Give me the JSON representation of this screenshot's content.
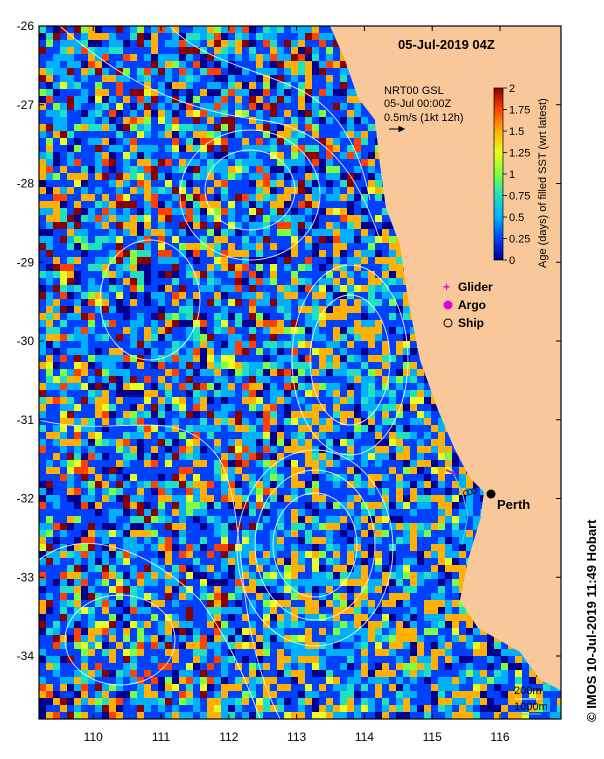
{
  "map": {
    "title": "05-Jul-2019 04Z",
    "product_line1": "NRT00 GSL",
    "product_line2": "05-Jul 00:00Z",
    "vector_scale_label": "0.5m/s (1kt 12h)",
    "city_label": "Perth",
    "credit": "© IMOS 10-Jul-2019 11:49 Hobart",
    "colors": {
      "land": "#f9c89a",
      "contour": "#ffffff",
      "frame": "#000000",
      "isobath": "#4fd0e0"
    },
    "lon_ticks": [
      "110",
      "111",
      "112",
      "113",
      "114",
      "115",
      "116"
    ],
    "lat_ticks": [
      "-26",
      "-27",
      "-28",
      "-29",
      "-30",
      "-31",
      "-32",
      "-33",
      "-34"
    ],
    "lon_range": [
      109.2,
      116.9
    ],
    "lat_range": [
      -26.0,
      -34.8
    ],
    "perth_location": {
      "lon": 115.86,
      "lat": -31.95
    }
  },
  "colorbar": {
    "title": "Age (days) of filled SST (wrt latest)",
    "range": [
      0,
      2
    ],
    "tick_labels": [
      "0",
      "0.25",
      "0.5",
      "0.75",
      "1",
      "1.25",
      "1.5",
      "1.75",
      "2"
    ],
    "stops": [
      "#00008f",
      "#0040ff",
      "#00b0ff",
      "#20e0c0",
      "#80ff40",
      "#e8ff20",
      "#ffb000",
      "#ff4000",
      "#8a0000"
    ]
  },
  "legend": {
    "items": [
      {
        "label": "Glider",
        "symbol": "plus",
        "color": "#e000e0"
      },
      {
        "label": "Argo",
        "symbol": "circle-filled",
        "color": "#e000e0"
      },
      {
        "label": "Ship",
        "symbol": "circle-open",
        "color": "#000000"
      }
    ]
  },
  "depth_legend": {
    "item1": "200m",
    "item2": "1000m"
  }
}
